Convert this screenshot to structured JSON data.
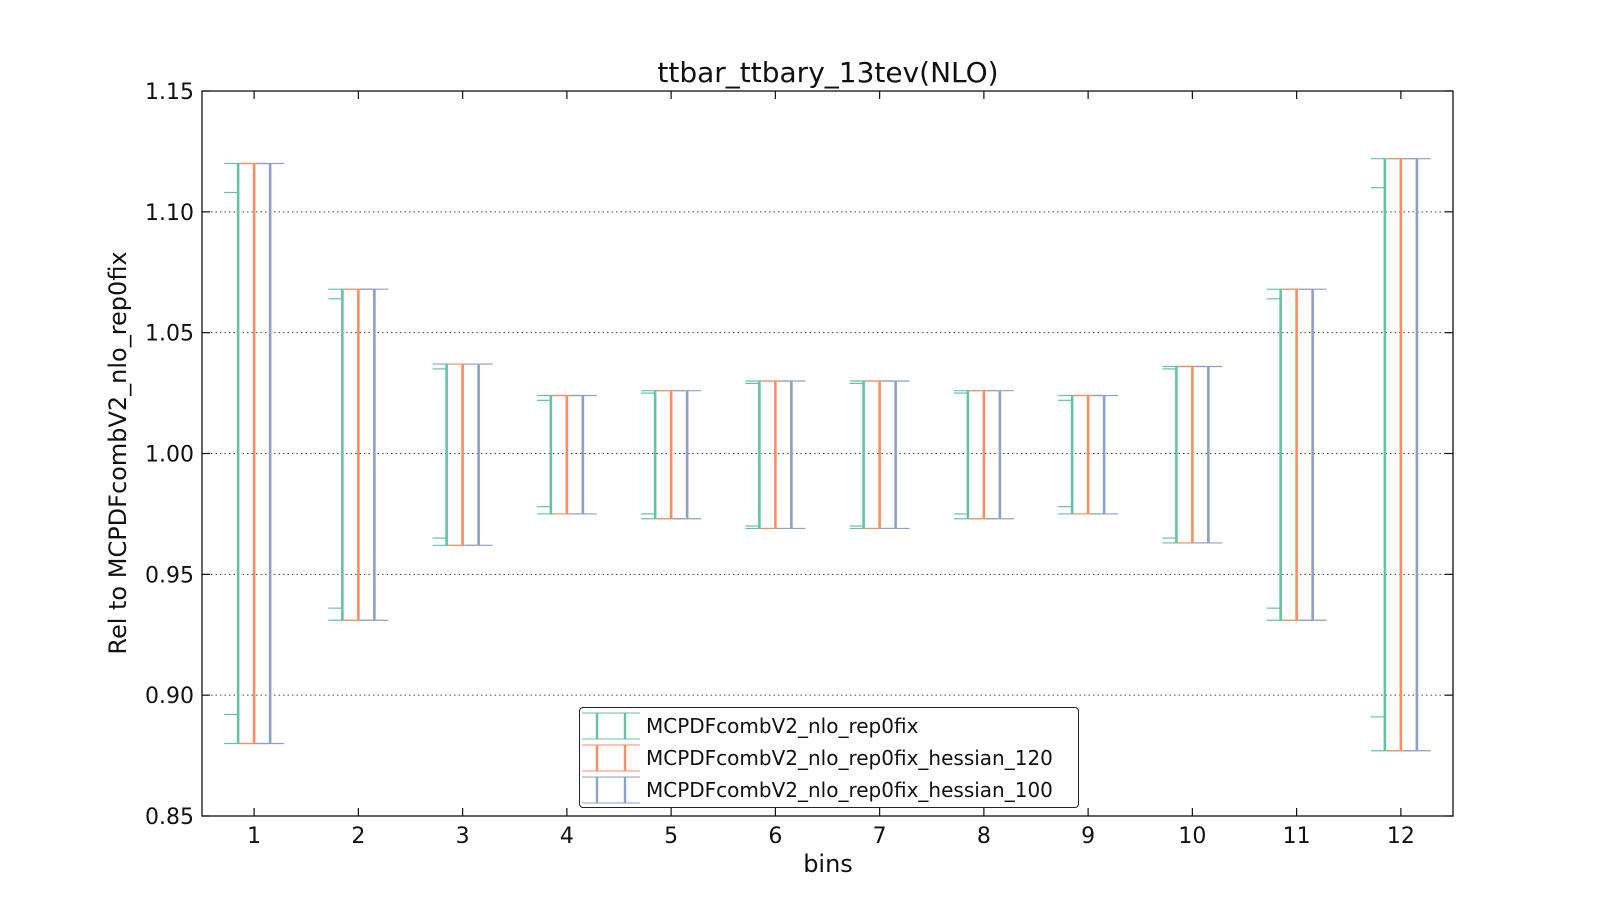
{
  "chart_data": {
    "type": "errorbar",
    "title": "ttbar_ttbary_13tev(NLO)",
    "xlabel": "bins",
    "ylabel": "Rel to MCPDFcombV2_nlo_rep0fix",
    "ylim": [
      0.85,
      1.15
    ],
    "xlim": [
      0.5,
      12.5
    ],
    "yticks": [
      "0.85",
      "0.90",
      "0.95",
      "1.00",
      "1.05",
      "1.10",
      "1.15"
    ],
    "xticks": [
      "1",
      "2",
      "3",
      "4",
      "5",
      "6",
      "7",
      "8",
      "9",
      "10",
      "11",
      "12"
    ],
    "grid": "horizontal dotted",
    "legend_position": "lower center",
    "series": [
      {
        "name": "MCPDFcombV2_nlo_rep0fix",
        "color": "#66c2a5",
        "upper": [
          1.12,
          1.068,
          1.037,
          1.024,
          1.026,
          1.03,
          1.03,
          1.026,
          1.024,
          1.036,
          1.068,
          1.122
        ],
        "lower": [
          0.88,
          0.931,
          0.962,
          0.975,
          0.973,
          0.969,
          0.969,
          0.973,
          0.975,
          0.963,
          0.931,
          0.877
        ],
        "inner_upper": [
          1.108,
          1.064,
          1.035,
          1.022,
          1.025,
          1.029,
          1.029,
          1.025,
          1.022,
          1.035,
          1.064,
          1.11
        ],
        "inner_lower": [
          0.892,
          0.936,
          0.965,
          0.978,
          0.975,
          0.97,
          0.97,
          0.975,
          0.978,
          0.965,
          0.936,
          0.891
        ]
      },
      {
        "name": "MCPDFcombV2_nlo_rep0fix_hessian_120",
        "color": "#fc8d62",
        "upper": [
          1.12,
          1.068,
          1.037,
          1.024,
          1.026,
          1.03,
          1.03,
          1.026,
          1.024,
          1.036,
          1.068,
          1.122
        ],
        "lower": [
          0.88,
          0.931,
          0.962,
          0.975,
          0.973,
          0.969,
          0.969,
          0.973,
          0.975,
          0.963,
          0.931,
          0.877
        ]
      },
      {
        "name": "MCPDFcombV2_nlo_rep0fix_hessian_100",
        "color": "#8da0cb",
        "upper": [
          1.12,
          1.068,
          1.037,
          1.024,
          1.026,
          1.03,
          1.03,
          1.026,
          1.024,
          1.036,
          1.068,
          1.122
        ],
        "lower": [
          0.88,
          0.931,
          0.962,
          0.975,
          0.973,
          0.969,
          0.969,
          0.973,
          0.975,
          0.963,
          0.931,
          0.877
        ]
      }
    ]
  }
}
